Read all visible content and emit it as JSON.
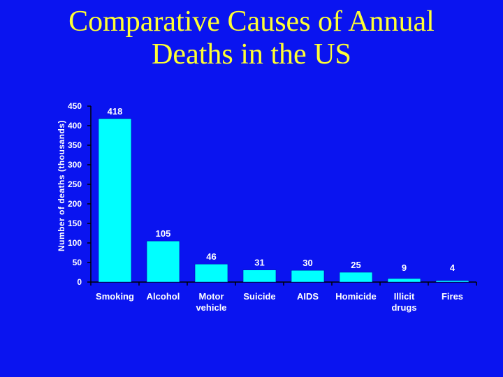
{
  "slide": {
    "title": "Comparative Causes of Annual Deaths in the US",
    "background_color": "#0a14f0",
    "title_color": "#ffff33"
  },
  "chart_data": {
    "type": "bar",
    "title": "",
    "xlabel": "",
    "ylabel": "Number of deaths (thousands)",
    "ylim": [
      0,
      450
    ],
    "yticks": [
      0,
      50,
      100,
      150,
      200,
      250,
      300,
      350,
      400,
      450
    ],
    "categories": [
      [
        "Smoking"
      ],
      [
        "Alcohol"
      ],
      [
        "Motor",
        "vehicle"
      ],
      [
        "Suicide"
      ],
      [
        "AIDS"
      ],
      [
        "Homicide"
      ],
      [
        "Illicit",
        "drugs"
      ],
      [
        "Fires"
      ]
    ],
    "values": [
      418,
      105,
      46,
      31,
      30,
      25,
      9,
      4
    ],
    "bar_color": "#00ffff",
    "text_color": "#ffffff",
    "grid": false,
    "legend": "none"
  }
}
